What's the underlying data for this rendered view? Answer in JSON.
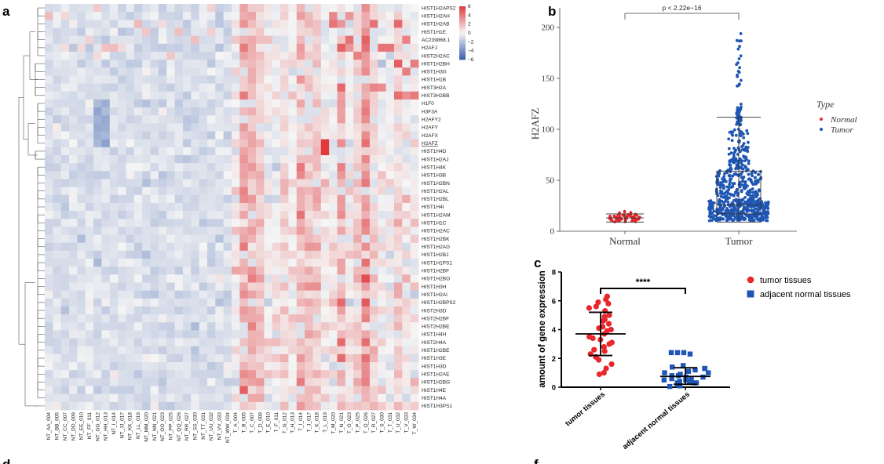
{
  "panel_labels": {
    "a": "a",
    "b": "b",
    "c": "c",
    "d": "d",
    "f": "f"
  },
  "colors": {
    "high": "#e03a3e",
    "mid": "#f5f5f5",
    "low": "#3b5fad",
    "red_dot": "#e8262b",
    "blue_dot": "#1f56b3",
    "highlight_gene": "#c0392b"
  },
  "chart_data": [
    {
      "type": "heatmap",
      "panel": "a",
      "rows": [
        "HIST1H2APS2",
        "HIST1H2AH",
        "HIST1H2AB",
        "HIST1H1E",
        "AC239868.1",
        "H2AFJ",
        "HIST2H2AC",
        "HIST1H2BH",
        "HIST1H3G",
        "HIST1H1B",
        "HIST3H2A",
        "HIST3H2BB",
        "H1F0",
        "H3F3A",
        "H2AFY2",
        "H2AFY",
        "H2AFX",
        "H2AFZ",
        "HIST1H4D",
        "HIST1H2AJ",
        "HIST1H4K",
        "HIST1H3B",
        "HIST1H2BN",
        "HIST1H2AL",
        "HIST1H2BL",
        "HIST1H4I",
        "HIST1H2AM",
        "HIST1H1C",
        "HIST1H2AC",
        "HIST1H2BK",
        "HIST1H2AG",
        "HIST1H2BJ",
        "HIST1H1PS1",
        "HIST1H2BF",
        "HIST1H2BO",
        "HIST1H3H",
        "HIST1H2AI",
        "HIST1H2BPS2",
        "HIST2H3D",
        "HIST2H2BF",
        "HIST2H2BE",
        "HIST1H4H",
        "HIST2H4A",
        "HIST1H2BE",
        "HIST1H3E",
        "HIST1H3D",
        "HIST1H2AE",
        "HIST1H2BG",
        "HIST1H4E",
        "HIST1H4A",
        "HIST1H3PS1"
      ],
      "highlight_row": "H2AFZ",
      "columns": [
        "NT_AA_004",
        "NT_BB_005",
        "NT_CC_007",
        "NT_DD_009",
        "NT_EE_010",
        "NT_FF_011",
        "NT_GG_012",
        "NT_HH_013",
        "NT_I_014",
        "NT_JJ_017",
        "NT_KK_018",
        "NT_LL_019",
        "NT_MM_020",
        "NT_NN_021",
        "NT_OO_023",
        "NT_PP_025",
        "NT_QQ_026",
        "NT_RR_027",
        "NT_SS_030",
        "NT_TT_031",
        "NT_UU_032",
        "NT_VV_033",
        "NT_WW_034",
        "T_A_004",
        "T_B_005",
        "T_C_007",
        "T_D_009",
        "T_E_010",
        "T_F_011",
        "T_G_012",
        "T_H_013",
        "T_I_014",
        "T_J_017",
        "T_K_018",
        "T_L_019",
        "T_M_020",
        "T_N_021",
        "T_O_023",
        "T_P_025",
        "T_Q_026",
        "T_R_027",
        "T_S_030",
        "T_T_031",
        "T_U_032",
        "T_V_033",
        "T_W_034"
      ],
      "legend_ticks": [
        "6",
        "4",
        "2",
        "0",
        "−2",
        "−4",
        "−6"
      ],
      "scale_range": [
        -6,
        6
      ]
    },
    {
      "type": "scatter",
      "panel": "b",
      "ylabel": "H2AFZ",
      "categories": [
        "Normal",
        "Tumor"
      ],
      "y_ticks": [
        "0",
        "50",
        "100",
        "150",
        "200"
      ],
      "ylim": [
        0,
        210
      ],
      "annotation": "p < 2.22e−16",
      "legend_title": "Type",
      "series": [
        {
          "name": "Normal",
          "mean": 13,
          "sd_low": 9,
          "sd_high": 17,
          "n": 60,
          "min": 8,
          "max": 22
        },
        {
          "name": "Tumor",
          "mean": 38,
          "sd_low": 9,
          "sd_high": 112,
          "median": 26,
          "q1": 17,
          "q3": 59,
          "n": 700,
          "min": 8,
          "max": 195
        }
      ]
    },
    {
      "type": "scatter",
      "panel": "c",
      "ylabel": "amount of gene expression",
      "categories": [
        "tumor tissues",
        "adjacent normal tissues"
      ],
      "y_ticks": [
        "0",
        "2",
        "4",
        "6",
        "8"
      ],
      "ylim": [
        0,
        8
      ],
      "annotation": "****",
      "series": [
        {
          "name": "tumor tissues",
          "mean": 3.7,
          "sd_low": 2.2,
          "sd_high": 5.2
        },
        {
          "name": "adjacent normal tissues",
          "mean": 0.75,
          "sd_low": 0.2,
          "sd_high": 1.35
        }
      ]
    }
  ]
}
